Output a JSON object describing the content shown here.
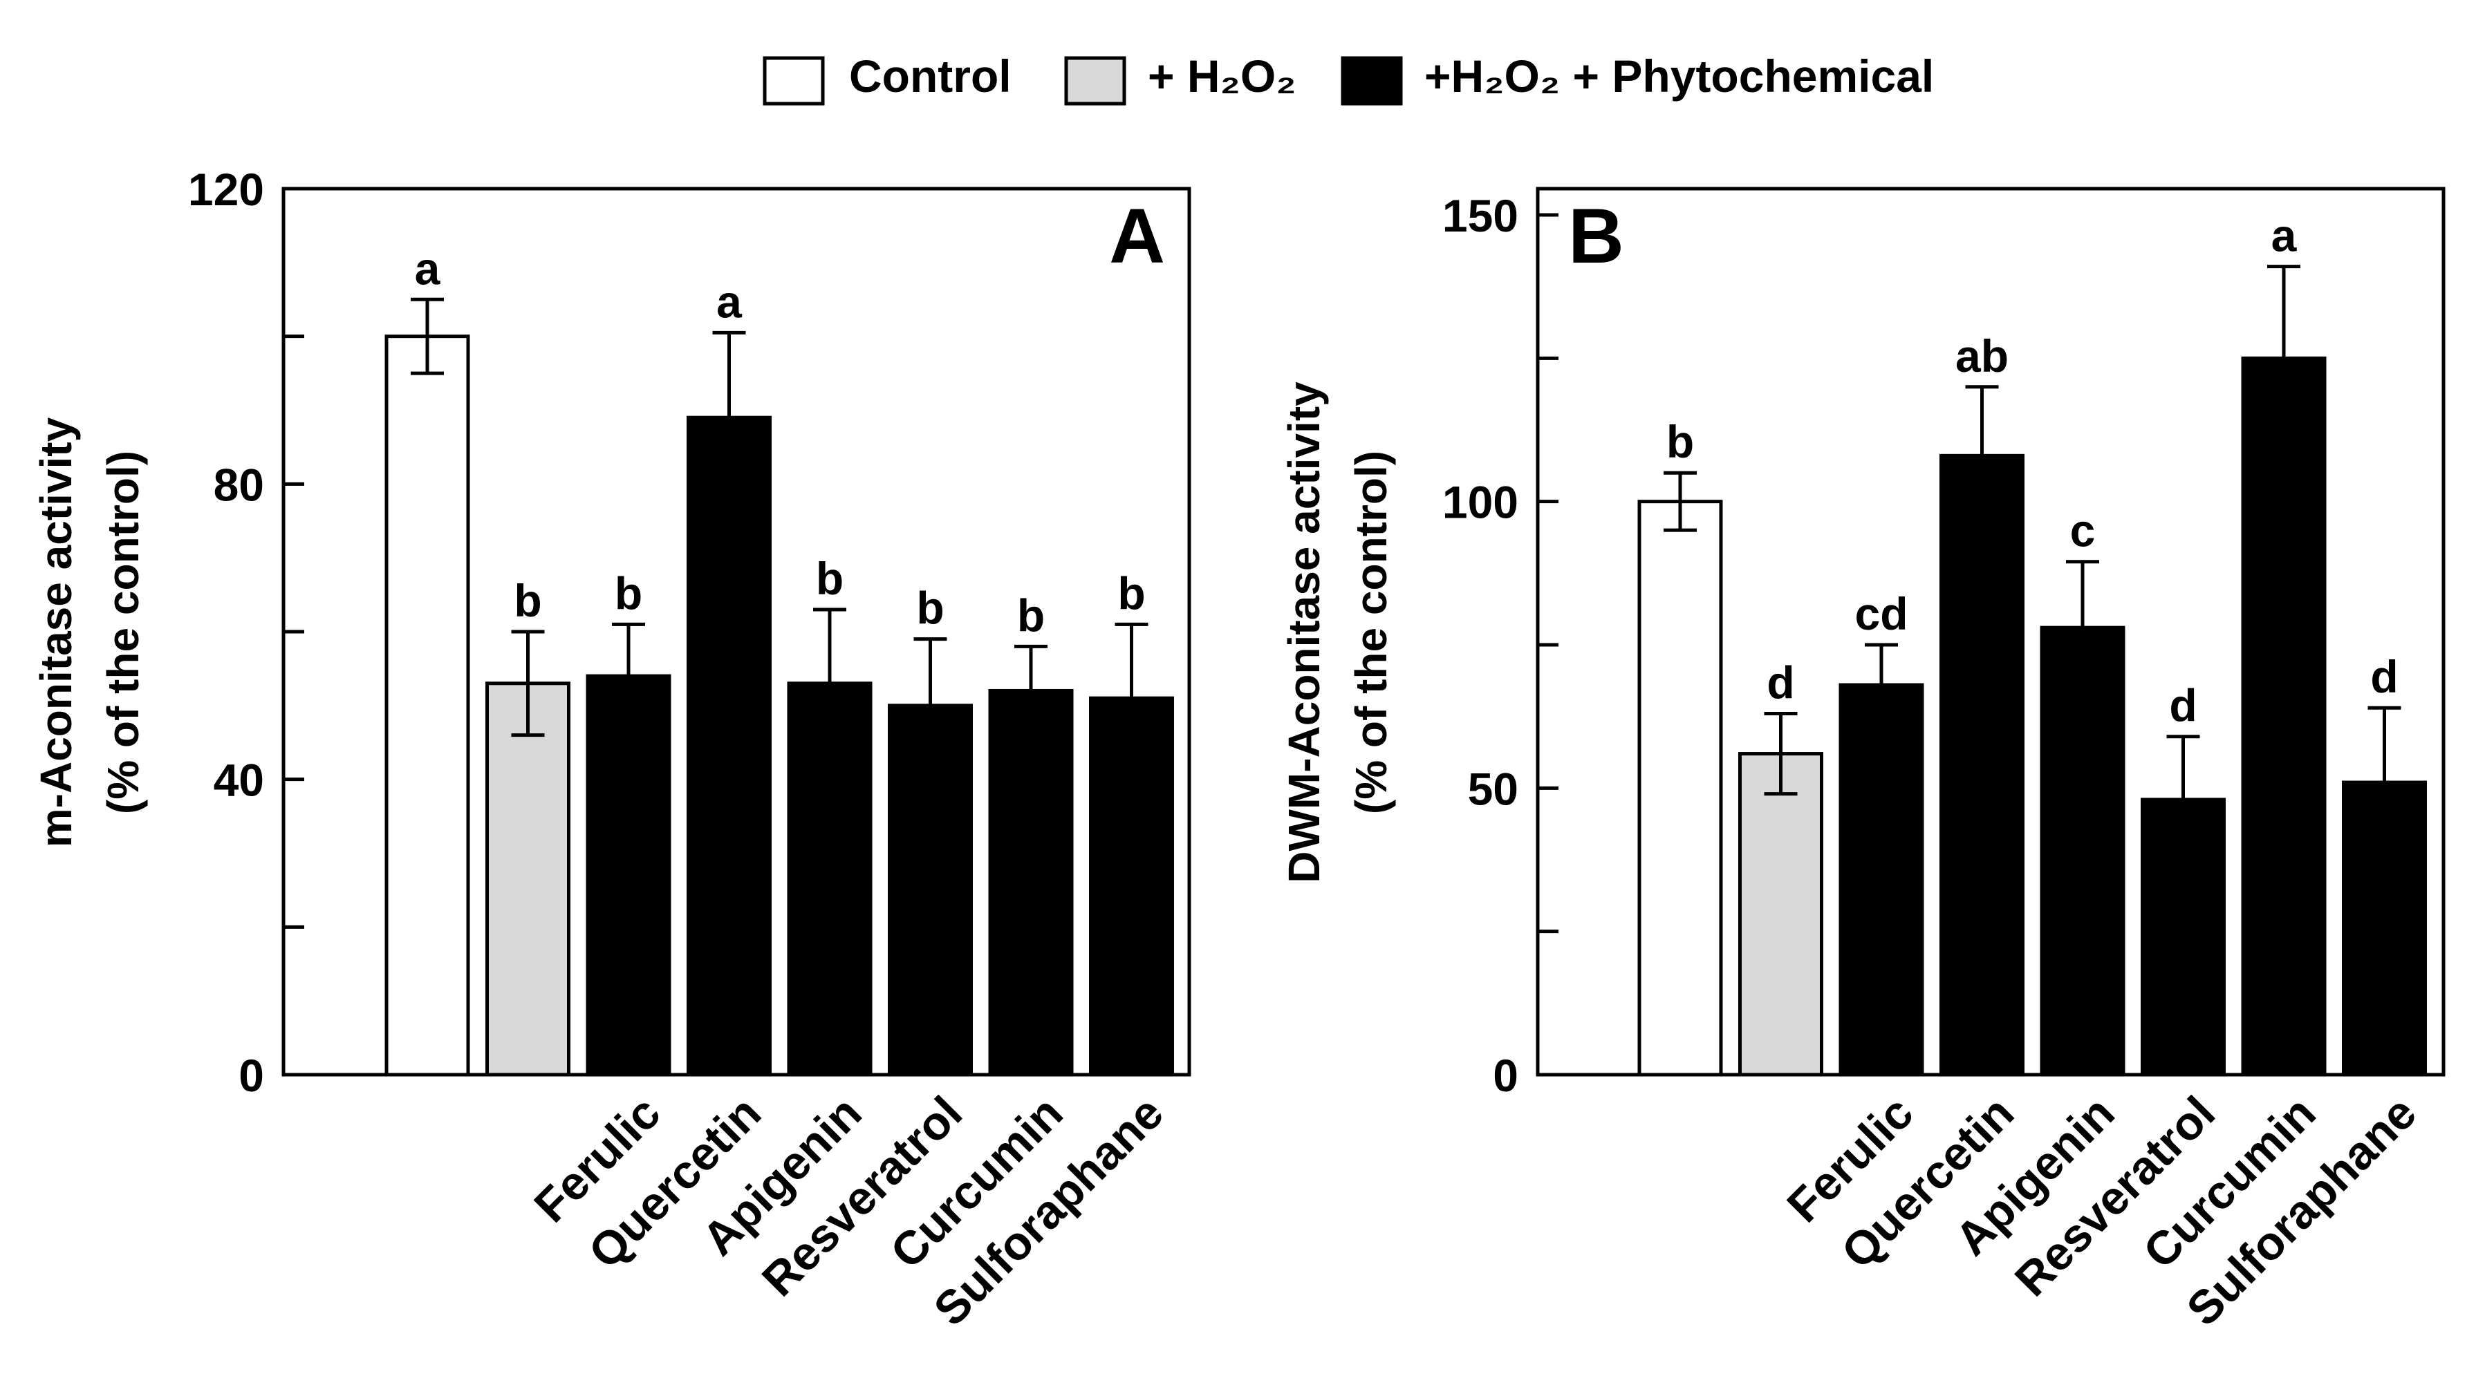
{
  "colors": {
    "control": "#ffffff",
    "h2o2": "#d9d9d9",
    "phyto": "#000000",
    "ink": "#000000"
  },
  "legend": {
    "items": [
      {
        "label": "Control",
        "color_key": "control"
      },
      {
        "label": "+ H₂O₂",
        "color_key": "h2o2"
      },
      {
        "label": "+H₂O₂ + Phytochemical",
        "color_key": "phyto"
      }
    ]
  },
  "chart_data": [
    {
      "type": "bar",
      "panel_label": "A",
      "ylabel_line1": "m-Aconitase activity",
      "ylabel_line2": "(% of the control)",
      "ylim": [
        0,
        120
      ],
      "yticks": [
        0,
        40,
        80,
        120
      ],
      "yminor": [
        20,
        60,
        100
      ],
      "categories": [
        "",
        "",
        "Ferulic",
        "Quercetin",
        "Apigenin",
        "Resveratrol",
        "Curcumin",
        "Sulforaphane"
      ],
      "groups": [
        "control",
        "h2o2",
        "phyto",
        "phyto",
        "phyto",
        "phyto",
        "phyto",
        "phyto"
      ],
      "values": [
        100,
        53,
        54,
        89,
        53,
        50,
        52,
        51
      ],
      "errors": [
        5,
        7,
        7,
        11.5,
        10,
        9,
        6,
        10
      ],
      "letters": [
        "a",
        "b",
        "b",
        "a",
        "b",
        "b",
        "b",
        "b"
      ]
    },
    {
      "type": "bar",
      "panel_label": "B",
      "ylabel_line1": "DWM-Aconitase activity",
      "ylabel_line2": "(% of the control)",
      "ylim": [
        0,
        150
      ],
      "yticks": [
        0,
        50,
        100,
        150
      ],
      "yminor": [
        25,
        75,
        125
      ],
      "categories": [
        "",
        "",
        "Ferulic",
        "Quercetin",
        "Apigenin",
        "Resveratrol",
        "Curcumin",
        "Sulforaphane"
      ],
      "groups": [
        "control",
        "h2o2",
        "phyto",
        "phyto",
        "phyto",
        "phyto",
        "phyto",
        "phyto"
      ],
      "values": [
        100,
        56,
        68,
        108,
        78,
        48,
        125,
        51
      ],
      "errors": [
        5,
        7,
        7,
        12,
        11.5,
        11,
        16,
        13
      ],
      "letters": [
        "b",
        "d",
        "cd",
        "ab",
        "c",
        "d",
        "a",
        "d"
      ]
    }
  ]
}
